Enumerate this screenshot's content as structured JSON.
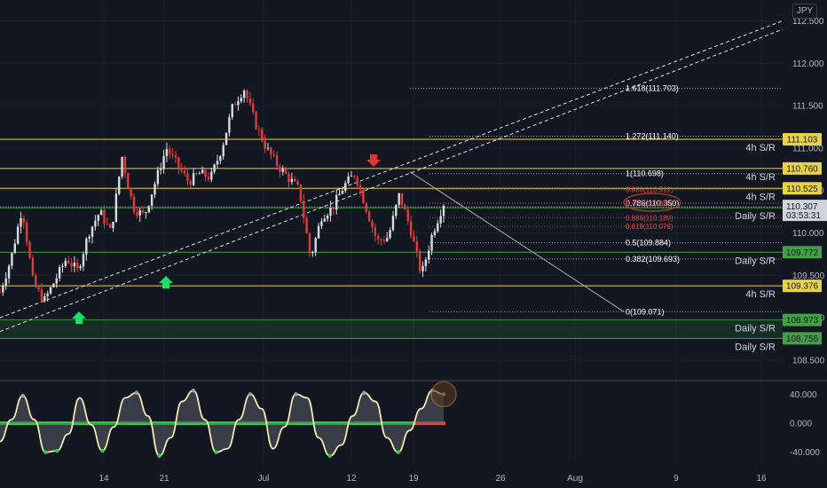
{
  "currency": "JPY",
  "colors": {
    "background": "#131722",
    "grid": "#1c202b",
    "axis_text": "#b2b5be",
    "candle_up": "#dcdcdc",
    "candle_down": "#e03c3c",
    "sr_yellow": "#e8d24a",
    "sr_green": "#43a047",
    "fib": "#9aa0a6",
    "fib_red": "#e04848",
    "oscillator_line": "#f3e6b0",
    "oscillator_fill": "#5a5d66",
    "zero_line_green": "#2ecc40",
    "zero_line_red": "#e84040",
    "arrow_up": "#19e06a",
    "arrow_down": "#e03535"
  },
  "chart_data": [
    {
      "type": "candlestick",
      "symbol_currency": "JPY",
      "y_axis_ticks": [
        "112.500",
        "112.000",
        "111.500",
        "111.000",
        "110.500",
        "110.000",
        "109.500",
        "109.000",
        "108.500"
      ],
      "ylim": [
        108.3,
        112.62
      ],
      "x_axis_ticks": [
        "14",
        "21",
        "Jul",
        "12",
        "19",
        "26",
        "Aug",
        "9",
        "16"
      ],
      "current_price": {
        "value": 110.307,
        "label": "110.307",
        "countdown": "03:53:31"
      },
      "close_path": [
        109.3,
        109.7,
        110.3,
        109.4,
        109.2,
        109.45,
        109.7,
        109.55,
        110.0,
        110.25,
        110.0,
        110.9,
        110.3,
        110.2,
        110.6,
        111.0,
        110.8,
        110.6,
        110.7,
        110.65,
        111.0,
        111.5,
        111.7,
        111.3,
        111.0,
        110.8,
        110.65,
        110.5,
        109.7,
        110.2,
        110.3,
        110.55,
        110.7,
        110.3,
        109.9,
        109.95,
        110.45,
        110.05,
        109.5,
        110.0,
        110.35
      ],
      "support_resistance": [
        {
          "value": 111.103,
          "label": "111.103",
          "tag": "4h S/R",
          "kind": "4h"
        },
        {
          "value": 110.76,
          "label": "110.760",
          "tag": "4h S/R",
          "kind": "4h"
        },
        {
          "value": 110.525,
          "label": "110.525",
          "tag": "4h S/R",
          "kind": "4h"
        },
        {
          "value": 110.297,
          "label": "110.297",
          "tag": "Daily S/R",
          "kind": "daily"
        },
        {
          "value": 109.772,
          "label": "109.772",
          "tag": "Daily S/R",
          "kind": "daily"
        },
        {
          "value": 109.376,
          "label": "109.376",
          "tag": "4h S/R",
          "kind": "4h"
        },
        {
          "value": 108.973,
          "label": "108.973",
          "tag": "Daily S/R",
          "kind": "daily"
        },
        {
          "value": 108.756,
          "label": "108.756",
          "tag": "Daily S/R",
          "kind": "daily"
        }
      ],
      "fibonacci": [
        {
          "label": "1.618(111.703)",
          "value": 111.703
        },
        {
          "label": "1.272(111.140)",
          "value": 111.14
        },
        {
          "label": "1(110.698)",
          "value": 110.698
        },
        {
          "label": "0.786(110.350)",
          "value": 110.35
        },
        {
          "label": "0.5(109.884)",
          "value": 109.884
        },
        {
          "label": "0.382(109.693)",
          "value": 109.693
        },
        {
          "label": "0(109.071)",
          "value": 109.071
        }
      ],
      "fibonacci_red": [
        {
          "label": "0.886(110.512)",
          "value": 110.512
        },
        {
          "label": "0.786(110.350)",
          "value": 110.35
        },
        {
          "label": "0.886(110.180)",
          "value": 110.18
        },
        {
          "label": "0.618(110.076)",
          "value": 110.076
        }
      ],
      "trend_channel": [
        {
          "from": [
            0,
            108.9
          ],
          "to": [
            1,
            112.4
          ]
        },
        {
          "from": [
            0,
            109.0
          ],
          "to": [
            1,
            112.5
          ]
        }
      ],
      "annotations": [
        {
          "type": "arrow-up",
          "label": ""
        },
        {
          "type": "arrow-up",
          "label": ""
        },
        {
          "type": "arrow-down",
          "label": ""
        }
      ]
    },
    {
      "type": "line",
      "name": "oscillator",
      "y_axis_ticks": [
        "40.000",
        "0.000",
        "-40.000"
      ],
      "ylim": [
        -55,
        55
      ],
      "values": [
        -25,
        5,
        38,
        5,
        -40,
        -38,
        -15,
        35,
        -2,
        -38,
        -5,
        35,
        42,
        10,
        -45,
        -20,
        30,
        45,
        5,
        -40,
        -35,
        5,
        40,
        20,
        -35,
        -5,
        40,
        35,
        -20,
        -45,
        -30,
        10,
        42,
        30,
        -20,
        -40,
        -10,
        20,
        45,
        40
      ]
    }
  ]
}
